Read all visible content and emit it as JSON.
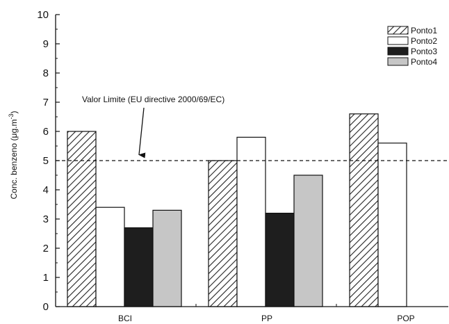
{
  "chart_data": {
    "type": "bar",
    "categories": [
      "BCI",
      "PP",
      "POP"
    ],
    "series": [
      {
        "name": "Ponto1",
        "values": [
          6.0,
          5.0,
          6.6
        ],
        "fill": "hatch"
      },
      {
        "name": "Ponto2",
        "values": [
          3.4,
          5.8,
          5.6
        ],
        "fill": "#ffffff"
      },
      {
        "name": "Ponto3",
        "values": [
          2.7,
          3.2,
          null
        ],
        "fill": "#1e1e1e"
      },
      {
        "name": "Ponto4",
        "values": [
          3.3,
          4.5,
          null
        ],
        "fill": "#c6c6c6"
      }
    ],
    "ylabel_main": "Conc. benzeno (μg.m",
    "ylabel_sup": "-3",
    "ylabel_close": ")",
    "ylim": [
      0,
      10
    ],
    "yticks": [
      "0",
      "1",
      "2",
      "3",
      "4",
      "5",
      "6",
      "7",
      "8",
      "9",
      "10"
    ],
    "grid": false,
    "legend_position": "top-right",
    "reference_line": {
      "value": 5.0,
      "style": "dashed"
    },
    "annotation": {
      "text": "Valor Limite (EU directive 2000/69/EC)",
      "points_to": [
        1.0,
        5.2
      ]
    }
  }
}
